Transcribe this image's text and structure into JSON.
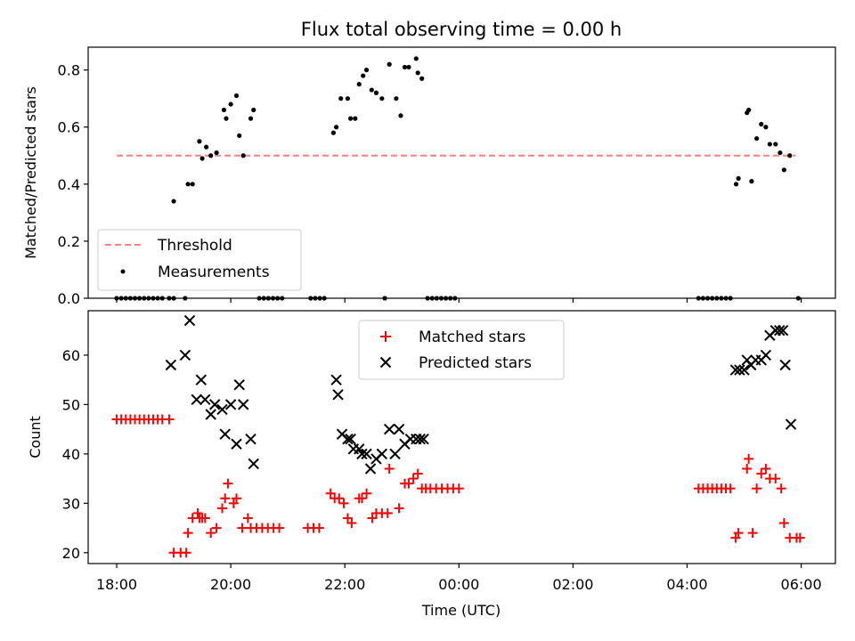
{
  "chart_data": [
    {
      "type": "scatter",
      "title": "Flux total observing time = 0.00 h",
      "xlabel": "",
      "ylabel": "Matched/Predicted stars",
      "xlim_hours": [
        17.5,
        30.6
      ],
      "ylim": [
        0,
        0.88
      ],
      "yticks": [
        0.0,
        0.2,
        0.4,
        0.6,
        0.8
      ],
      "ytick_labels": [
        "0.0",
        "0.2",
        "0.4",
        "0.6",
        "0.8"
      ],
      "legend": {
        "position": "lower-left",
        "entries": [
          "Threshold",
          "Measurements"
        ]
      },
      "threshold": {
        "name": "Threshold",
        "y": 0.5,
        "x": [
          18.0,
          29.9
        ],
        "color": "#ff7f7f"
      },
      "measurements": {
        "name": "Measurements",
        "color": "#000000",
        "points": [
          [
            18.0,
            0
          ],
          [
            18.08,
            0
          ],
          [
            18.16,
            0
          ],
          [
            18.24,
            0
          ],
          [
            18.32,
            0
          ],
          [
            18.4,
            0
          ],
          [
            18.48,
            0
          ],
          [
            18.56,
            0
          ],
          [
            18.64,
            0
          ],
          [
            18.72,
            0
          ],
          [
            18.8,
            0
          ],
          [
            18.92,
            0
          ],
          [
            19.0,
            0
          ],
          [
            19.2,
            0
          ],
          [
            19.0,
            0.34
          ],
          [
            19.25,
            0.4
          ],
          [
            19.33,
            0.4
          ],
          [
            19.45,
            0.55
          ],
          [
            19.5,
            0.49
          ],
          [
            19.57,
            0.53
          ],
          [
            19.65,
            0.5
          ],
          [
            19.75,
            0.51
          ],
          [
            19.88,
            0.66
          ],
          [
            19.92,
            0.63
          ],
          [
            20.0,
            0.68
          ],
          [
            20.1,
            0.71
          ],
          [
            20.15,
            0.57
          ],
          [
            20.22,
            0.5
          ],
          [
            20.35,
            0.63
          ],
          [
            20.4,
            0.66
          ],
          [
            20.5,
            0
          ],
          [
            20.58,
            0
          ],
          [
            20.66,
            0
          ],
          [
            20.74,
            0
          ],
          [
            20.82,
            0
          ],
          [
            20.9,
            0
          ],
          [
            21.4,
            0
          ],
          [
            21.48,
            0
          ],
          [
            21.56,
            0
          ],
          [
            21.64,
            0
          ],
          [
            21.8,
            0.58
          ],
          [
            21.85,
            0.6
          ],
          [
            21.93,
            0.7
          ],
          [
            22.05,
            0.7
          ],
          [
            22.1,
            0.63
          ],
          [
            22.18,
            0.63
          ],
          [
            22.25,
            0.75
          ],
          [
            22.32,
            0.78
          ],
          [
            22.38,
            0.8
          ],
          [
            22.47,
            0.73
          ],
          [
            22.55,
            0.72
          ],
          [
            22.65,
            0.7
          ],
          [
            22.78,
            0.82
          ],
          [
            22.9,
            0.7
          ],
          [
            22.98,
            0.64
          ],
          [
            23.05,
            0.81
          ],
          [
            23.12,
            0.81
          ],
          [
            23.25,
            0.84
          ],
          [
            23.28,
            0.79
          ],
          [
            23.35,
            0.77
          ],
          [
            22.7,
            0
          ],
          [
            23.45,
            0
          ],
          [
            23.53,
            0
          ],
          [
            23.61,
            0
          ],
          [
            23.69,
            0
          ],
          [
            23.77,
            0
          ],
          [
            23.85,
            0
          ],
          [
            23.93,
            0
          ],
          [
            28.2,
            0
          ],
          [
            28.28,
            0
          ],
          [
            28.36,
            0
          ],
          [
            28.44,
            0
          ],
          [
            28.52,
            0
          ],
          [
            28.6,
            0
          ],
          [
            28.68,
            0
          ],
          [
            28.76,
            0
          ],
          [
            28.86,
            0.4
          ],
          [
            28.9,
            0.42
          ],
          [
            29.05,
            0.65
          ],
          [
            29.08,
            0.66
          ],
          [
            29.13,
            0.41
          ],
          [
            29.22,
            0.56
          ],
          [
            29.3,
            0.61
          ],
          [
            29.38,
            0.6
          ],
          [
            29.45,
            0.54
          ],
          [
            29.55,
            0.54
          ],
          [
            29.63,
            0.51
          ],
          [
            29.7,
            0.45
          ],
          [
            29.8,
            0.5
          ],
          [
            29.95,
            0
          ]
        ]
      }
    },
    {
      "type": "scatter",
      "title": "",
      "xlabel": "Time (UTC)",
      "ylabel": "Count",
      "xlim_hours": [
        17.5,
        30.6
      ],
      "ylim": [
        17.8,
        69
      ],
      "yticks": [
        20,
        30,
        40,
        50,
        60
      ],
      "ytick_labels": [
        "20",
        "30",
        "40",
        "50",
        "60"
      ],
      "xticks_hours": [
        18,
        20,
        22,
        24,
        26,
        28,
        30
      ],
      "xtick_labels": [
        "18:00",
        "20:00",
        "22:00",
        "00:00",
        "02:00",
        "04:00",
        "06:00"
      ],
      "legend": {
        "position": "upper-center",
        "entries": [
          "Matched stars",
          "Predicted stars"
        ]
      },
      "series": [
        {
          "name": "Matched stars",
          "marker": "plus",
          "color": "#ff0000",
          "points": [
            [
              18.0,
              47
            ],
            [
              18.08,
              47
            ],
            [
              18.16,
              47
            ],
            [
              18.24,
              47
            ],
            [
              18.32,
              47
            ],
            [
              18.4,
              47
            ],
            [
              18.48,
              47
            ],
            [
              18.56,
              47
            ],
            [
              18.64,
              47
            ],
            [
              18.72,
              47
            ],
            [
              18.8,
              47
            ],
            [
              18.92,
              47
            ],
            [
              19.0,
              20
            ],
            [
              19.12,
              20
            ],
            [
              19.22,
              20
            ],
            [
              19.25,
              24
            ],
            [
              19.33,
              27
            ],
            [
              19.42,
              28
            ],
            [
              19.45,
              27
            ],
            [
              19.5,
              27
            ],
            [
              19.55,
              27
            ],
            [
              19.65,
              24
            ],
            [
              19.75,
              25
            ],
            [
              19.85,
              29
            ],
            [
              19.9,
              31
            ],
            [
              19.95,
              34
            ],
            [
              20.05,
              30
            ],
            [
              20.1,
              31
            ],
            [
              20.2,
              25
            ],
            [
              20.3,
              27
            ],
            [
              20.35,
              25
            ],
            [
              20.45,
              25
            ],
            [
              20.55,
              25
            ],
            [
              20.65,
              25
            ],
            [
              20.75,
              25
            ],
            [
              20.85,
              25
            ],
            [
              21.35,
              25
            ],
            [
              21.45,
              25
            ],
            [
              21.55,
              25
            ],
            [
              21.75,
              32
            ],
            [
              21.82,
              31
            ],
            [
              21.9,
              31
            ],
            [
              21.98,
              30
            ],
            [
              22.05,
              27
            ],
            [
              22.12,
              26
            ],
            [
              22.25,
              31
            ],
            [
              22.3,
              31
            ],
            [
              22.38,
              32
            ],
            [
              22.48,
              27
            ],
            [
              22.55,
              28
            ],
            [
              22.65,
              28
            ],
            [
              22.75,
              28
            ],
            [
              22.78,
              37
            ],
            [
              22.95,
              29
            ],
            [
              23.05,
              34
            ],
            [
              23.12,
              34
            ],
            [
              23.2,
              35
            ],
            [
              23.28,
              36
            ],
            [
              23.35,
              33
            ],
            [
              23.42,
              33
            ],
            [
              23.5,
              33
            ],
            [
              23.6,
              33
            ],
            [
              23.7,
              33
            ],
            [
              23.8,
              33
            ],
            [
              23.9,
              33
            ],
            [
              24.0,
              33
            ],
            [
              28.2,
              33
            ],
            [
              28.28,
              33
            ],
            [
              28.36,
              33
            ],
            [
              28.44,
              33
            ],
            [
              28.52,
              33
            ],
            [
              28.6,
              33
            ],
            [
              28.68,
              33
            ],
            [
              28.76,
              33
            ],
            [
              28.85,
              23
            ],
            [
              28.9,
              24
            ],
            [
              29.05,
              37
            ],
            [
              29.08,
              39
            ],
            [
              29.15,
              24
            ],
            [
              29.22,
              33
            ],
            [
              29.3,
              36
            ],
            [
              29.38,
              37
            ],
            [
              29.45,
              35
            ],
            [
              29.55,
              35
            ],
            [
              29.65,
              33
            ],
            [
              29.7,
              26
            ],
            [
              29.8,
              23
            ],
            [
              29.92,
              23
            ],
            [
              29.98,
              23
            ]
          ]
        },
        {
          "name": "Predicted stars",
          "marker": "x",
          "color": "#000000",
          "points": [
            [
              18.95,
              58
            ],
            [
              19.2,
              60
            ],
            [
              19.28,
              67
            ],
            [
              19.4,
              51
            ],
            [
              19.48,
              55
            ],
            [
              19.55,
              51
            ],
            [
              19.65,
              48
            ],
            [
              19.72,
              50
            ],
            [
              19.85,
              49
            ],
            [
              19.9,
              44
            ],
            [
              20.0,
              50
            ],
            [
              20.1,
              42
            ],
            [
              20.15,
              54
            ],
            [
              20.22,
              50
            ],
            [
              20.35,
              43
            ],
            [
              20.4,
              38
            ],
            [
              21.85,
              55
            ],
            [
              21.88,
              52
            ],
            [
              21.95,
              44
            ],
            [
              22.05,
              43
            ],
            [
              22.1,
              43
            ],
            [
              22.15,
              41
            ],
            [
              22.25,
              41
            ],
            [
              22.3,
              40
            ],
            [
              22.38,
              40
            ],
            [
              22.45,
              37
            ],
            [
              22.55,
              39
            ],
            [
              22.65,
              40
            ],
            [
              22.78,
              45
            ],
            [
              22.88,
              40
            ],
            [
              22.95,
              45
            ],
            [
              23.05,
              42
            ],
            [
              23.15,
              43
            ],
            [
              23.25,
              43
            ],
            [
              23.32,
              43
            ],
            [
              23.38,
              43
            ],
            [
              28.85,
              57
            ],
            [
              28.92,
              57
            ],
            [
              29.0,
              57
            ],
            [
              29.05,
              59
            ],
            [
              29.12,
              58
            ],
            [
              29.2,
              59
            ],
            [
              29.3,
              59
            ],
            [
              29.38,
              60
            ],
            [
              29.45,
              64
            ],
            [
              29.55,
              65
            ],
            [
              29.62,
              65
            ],
            [
              29.68,
              65
            ],
            [
              29.72,
              58
            ],
            [
              29.82,
              46
            ]
          ]
        }
      ]
    }
  ]
}
